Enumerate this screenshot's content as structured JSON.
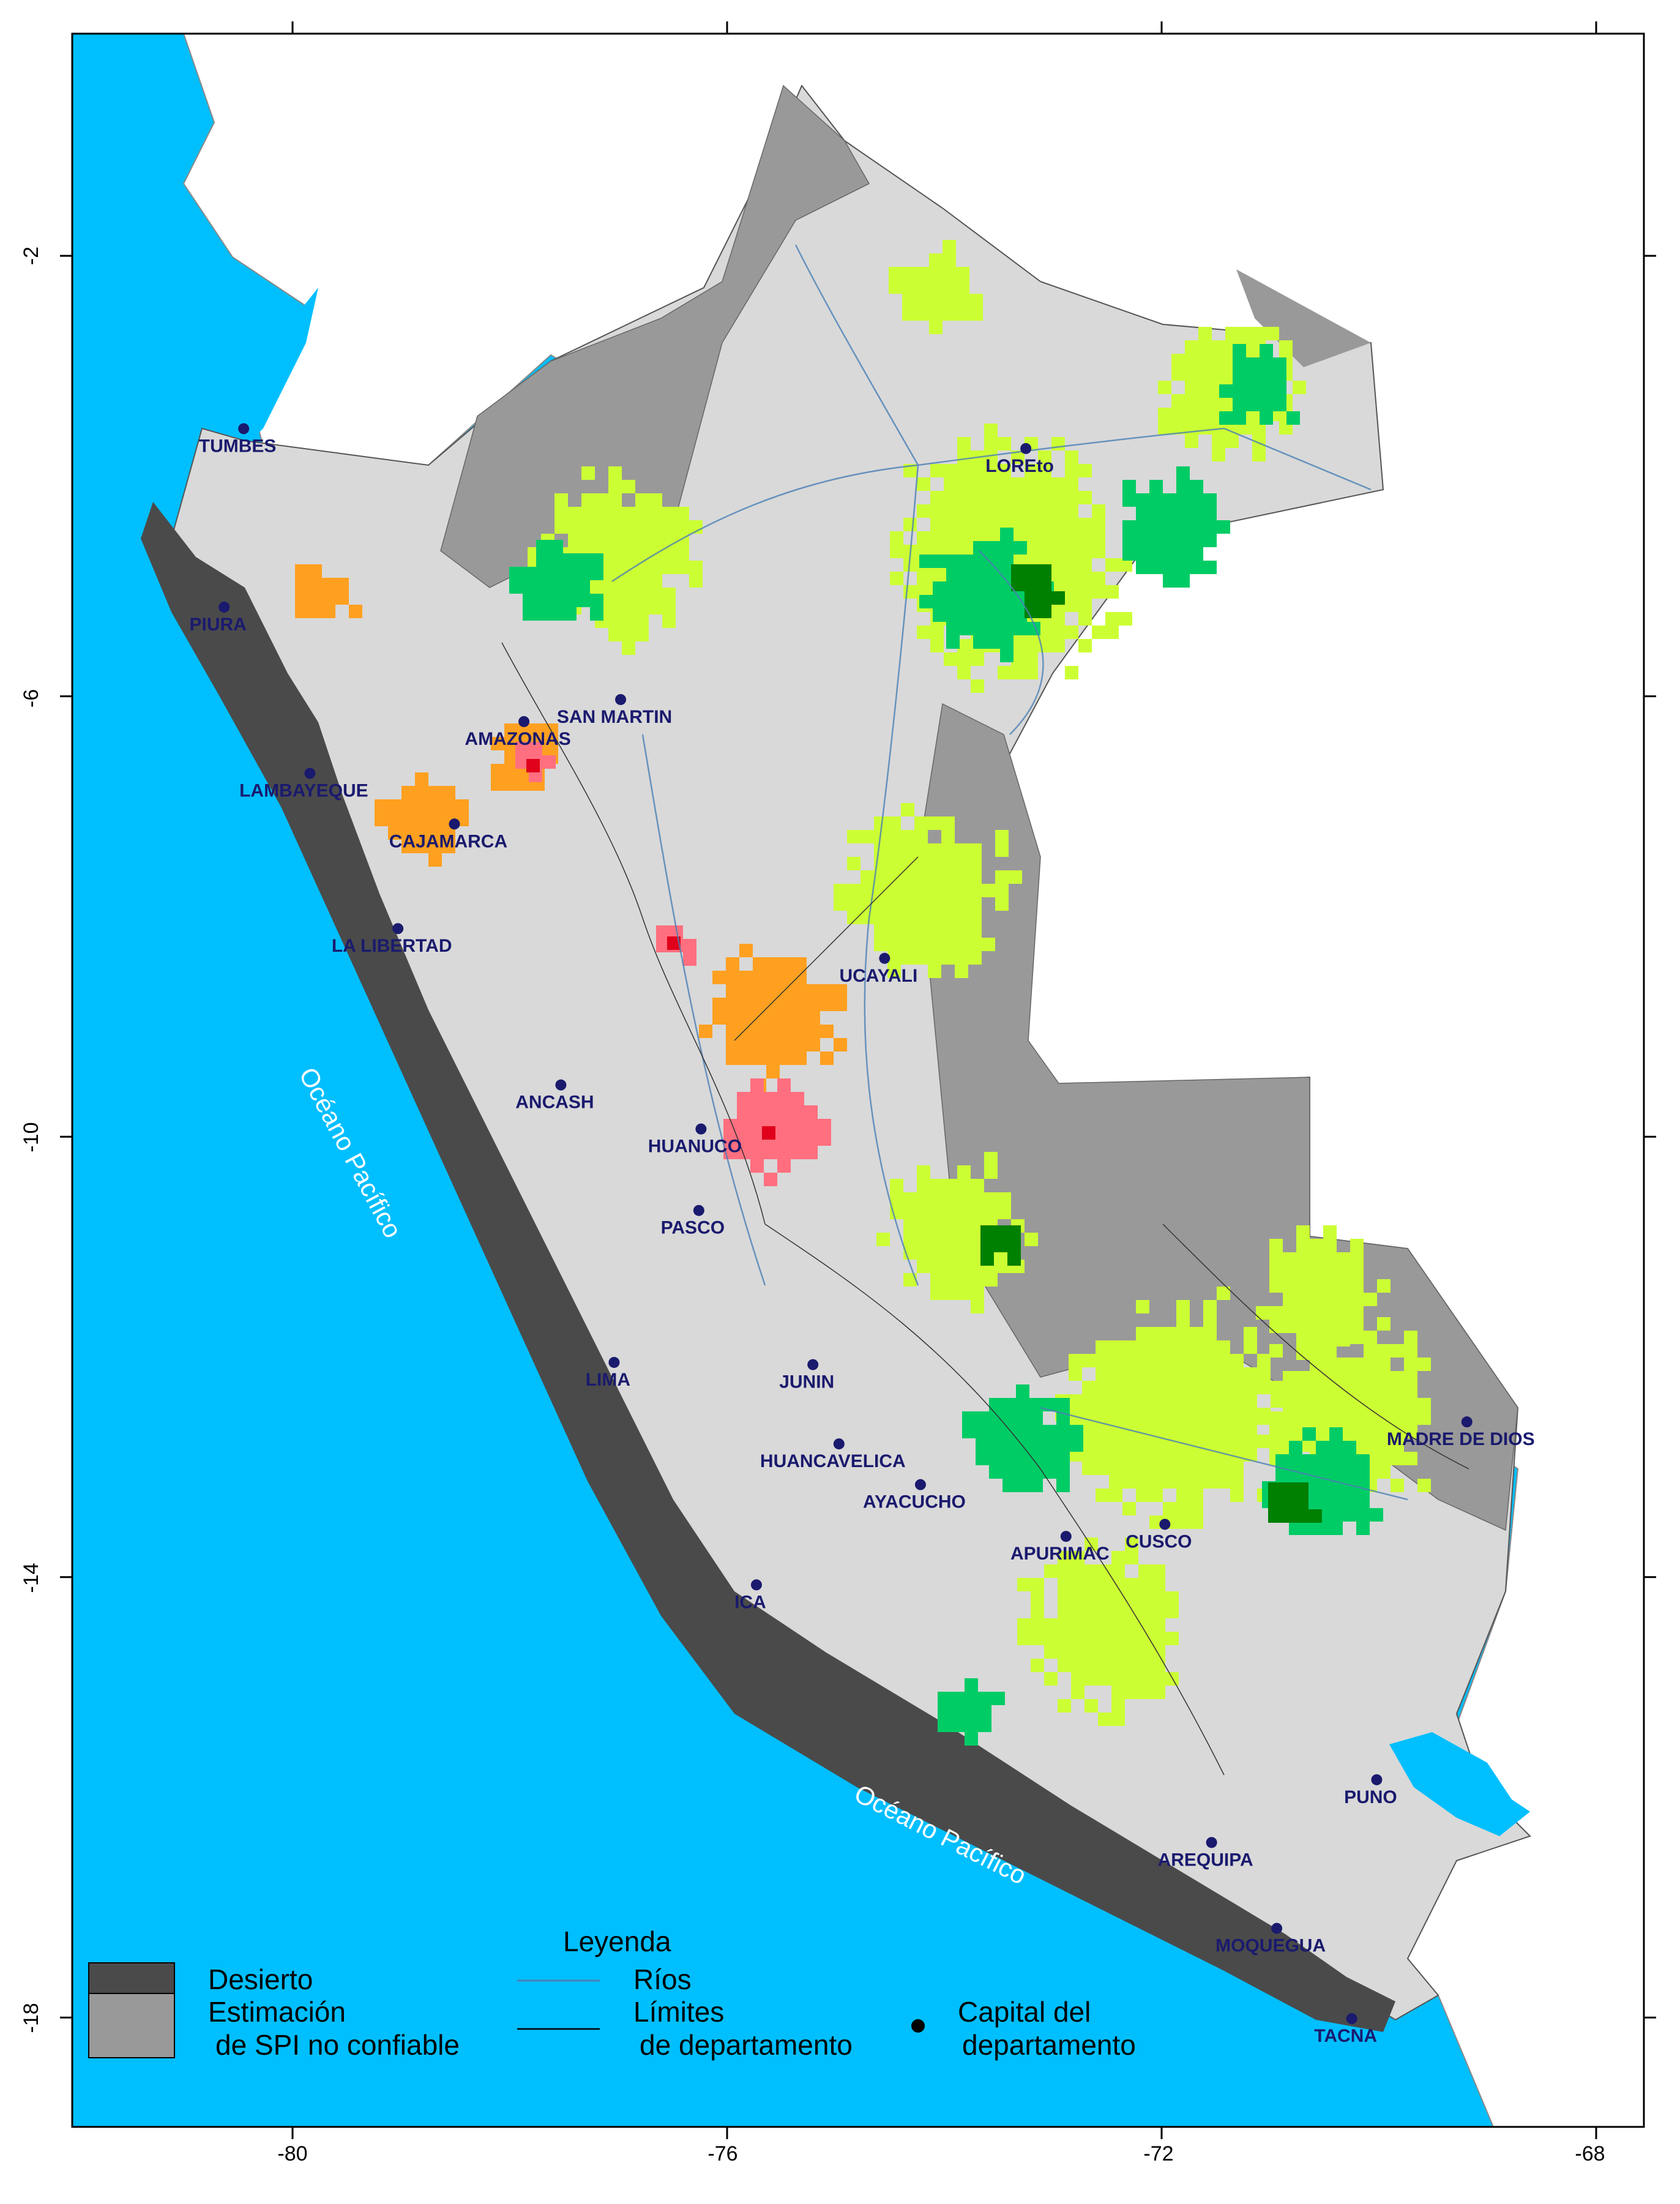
{
  "axes": {
    "x_ticks": [
      "-80",
      "-76",
      "-72",
      "-68"
    ],
    "y_ticks": [
      "-2",
      "-6",
      "-10",
      "-14",
      "-18"
    ]
  },
  "capitals": [
    {
      "name": "TUMBES",
      "lon": -80.45,
      "lat": -3.57
    },
    {
      "name": "PIURA",
      "lon": -80.63,
      "lat": -5.19
    },
    {
      "name": "LAMBAYEQUE",
      "lon": -79.84,
      "lat": -6.7
    },
    {
      "name": "AMAZONAS",
      "lon": -77.87,
      "lat": -6.23
    },
    {
      "name": "SAN MARTIN",
      "lon": -76.98,
      "lat": -6.03
    },
    {
      "name": "CAJAMARCA",
      "lon": -78.51,
      "lat": -7.16
    },
    {
      "name": "LOREto",
      "lon": -73.25,
      "lat": -3.75
    },
    {
      "name": "LA LIBERTAD",
      "lon": -79.03,
      "lat": -8.11
    },
    {
      "name": "UCAYALI",
      "lon": -74.55,
      "lat": -8.38
    },
    {
      "name": "ANCASH",
      "lon": -77.53,
      "lat": -9.53
    },
    {
      "name": "HUANUCO",
      "lon": -76.24,
      "lat": -9.93
    },
    {
      "name": "PASCO",
      "lon": -76.26,
      "lat": -10.67
    },
    {
      "name": "JUNIN",
      "lon": -75.21,
      "lat": -12.07
    },
    {
      "name": "LIMA",
      "lon": -77.04,
      "lat": -12.05
    },
    {
      "name": "MADRE DE DIOS",
      "lon": -69.19,
      "lat": -12.59
    },
    {
      "name": "HUANCAVELICA",
      "lon": -74.97,
      "lat": -12.79
    },
    {
      "name": "AYACUCHO",
      "lon": -74.22,
      "lat": -13.16
    },
    {
      "name": "APURIMAC",
      "lon": -72.88,
      "lat": -13.63
    },
    {
      "name": "CUSCO",
      "lon": -71.97,
      "lat": -13.52
    },
    {
      "name": "ICA",
      "lon": -75.73,
      "lat": -14.07
    },
    {
      "name": "PUNO",
      "lon": -70.02,
      "lat": -15.84
    },
    {
      "name": "AREQUIPA",
      "lon": -71.54,
      "lat": -16.41
    },
    {
      "name": "MOQUEGUA",
      "lon": -70.94,
      "lat": -17.19
    },
    {
      "name": "TACNA",
      "lon": -70.25,
      "lat": -18.01
    }
  ],
  "ocean_labels": [
    "Océano Pacífico",
    "Océano Pacífico"
  ],
  "legend": {
    "title": "Leyenda",
    "desert": "Desierto",
    "unreliable_line1": "Estimación",
    "unreliable_line2": "de SPI no confiable",
    "rivers": "Ríos",
    "boundaries_line1": "Límites",
    "boundaries_line2": "de departamento",
    "capital_line1": "Capital del",
    "capital_line2": "departamento"
  },
  "colors": {
    "ocean": "#00bfff",
    "desert": "#4a4a4a",
    "unreliable": "#999999",
    "land": "#d9d9d9",
    "light_green": "#ccff33",
    "green": "#00cc66",
    "dark_green": "#008000",
    "orange": "#ffa020",
    "pink": "#ff6f7f",
    "red": "#e0001b",
    "river": "#4a7fb5",
    "capital": "#1a1a6e"
  }
}
